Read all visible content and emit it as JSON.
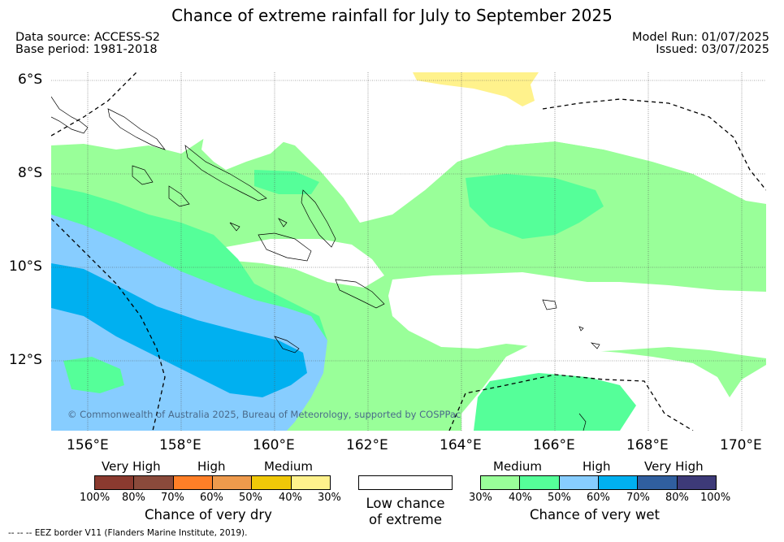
{
  "title": "Chance of extreme rainfall for July to September 2025",
  "meta": {
    "data_source": "Data source: ACCESS-S2",
    "base_period": "Base period: 1981-2018",
    "model_run": "Model Run: 01/07/2025",
    "issued": "Issued: 03/07/2025"
  },
  "map": {
    "lat_labels": [
      "6°S",
      "8°S",
      "10°S",
      "12°S"
    ],
    "lon_labels": [
      "156°E",
      "158°E",
      "160°E",
      "162°E",
      "164°E",
      "166°E",
      "168°E",
      "170°E"
    ],
    "copyright": "© Commonwealth of Australia 2025, Bureau of Meteorology, supported by COSPPac",
    "background_color": "#ffffff"
  },
  "legend": {
    "dry": {
      "title": "Chance of very dry",
      "categories": [
        "Very High",
        "High",
        "Medium"
      ],
      "ticks": [
        "100%",
        "80%",
        "70%",
        "60%",
        "50%",
        "40%",
        "30%"
      ],
      "colors": [
        "#8b3a2f",
        "#8a4a3b",
        "#ff7f27",
        "#ee9a4c",
        "#f0c808",
        "#fff28c"
      ]
    },
    "neutral": {
      "line1": "Low chance",
      "line2": "of extreme",
      "color": "#ffffff"
    },
    "wet": {
      "title": "Chance of very wet",
      "categories": [
        "Medium",
        "High",
        "Very High"
      ],
      "ticks": [
        "30%",
        "40%",
        "50%",
        "60%",
        "70%",
        "80%",
        "100%"
      ],
      "colors": [
        "#99ff99",
        "#55ff99",
        "#87cdff",
        "#00b0f0",
        "#305f9f",
        "#3d3a78"
      ]
    }
  },
  "footnote": "-- -- -- EEZ border V11 (Flanders Marine Institute, 2019)."
}
